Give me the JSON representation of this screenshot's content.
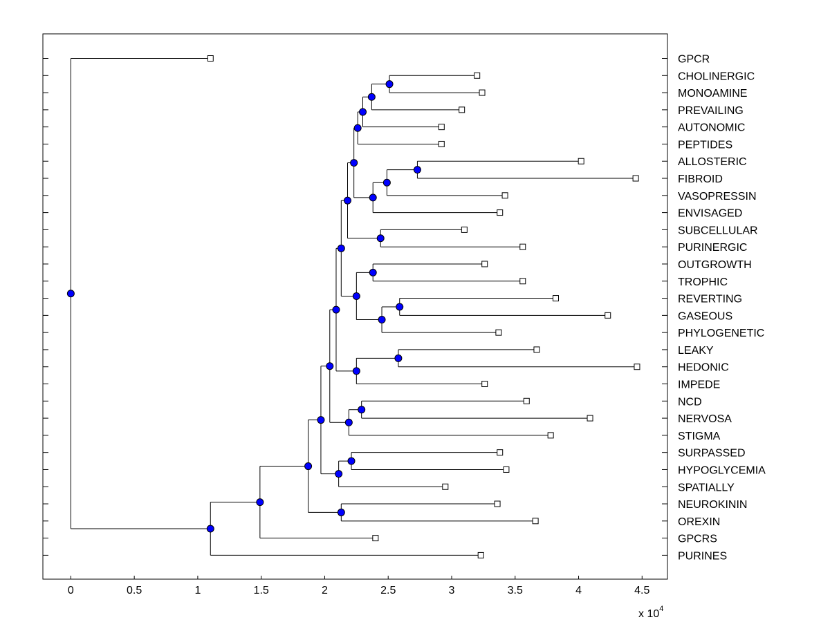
{
  "chart_data": {
    "type": "dendrogram",
    "orientation": "horizontal",
    "xlim": [
      -0.22,
      4.7
    ],
    "xticks": [
      0,
      0.5,
      1,
      1.5,
      2,
      2.5,
      3,
      3.5,
      4,
      4.5
    ],
    "xtick_labels": [
      "0",
      "0.5",
      "1",
      "1.5",
      "2",
      "2.5",
      "3",
      "3.5",
      "4",
      "4.5"
    ],
    "x_exponent_label": "x 10",
    "x_exponent_power": "4",
    "node_color": "#0000ff",
    "leaf_marker_color": "#ffffff",
    "leaves": [
      {
        "label": "GPCR",
        "value": 1.1
      },
      {
        "label": "CHOLINERGIC",
        "value": 3.2
      },
      {
        "label": "MONOAMINE",
        "value": 3.24
      },
      {
        "label": "PREVAILING",
        "value": 3.08
      },
      {
        "label": "AUTONOMIC",
        "value": 2.92
      },
      {
        "label": "PEPTIDES",
        "value": 2.92
      },
      {
        "label": "ALLOSTERIC",
        "value": 4.02
      },
      {
        "label": "FIBROID",
        "value": 4.45
      },
      {
        "label": "VASOPRESSIN",
        "value": 3.42
      },
      {
        "label": "ENVISAGED",
        "value": 3.38
      },
      {
        "label": "SUBCELLULAR",
        "value": 3.1
      },
      {
        "label": "PURINERGIC",
        "value": 3.56
      },
      {
        "label": "OUTGROWTH",
        "value": 3.26
      },
      {
        "label": "TROPHIC",
        "value": 3.56
      },
      {
        "label": "REVERTING",
        "value": 3.82
      },
      {
        "label": "GASEOUS",
        "value": 4.23
      },
      {
        "label": "PHYLOGENETIC",
        "value": 3.37
      },
      {
        "label": "LEAKY",
        "value": 3.67
      },
      {
        "label": "HEDONIC",
        "value": 4.46
      },
      {
        "label": "IMPEDE",
        "value": 3.26
      },
      {
        "label": "NCD",
        "value": 3.59
      },
      {
        "label": "NERVOSA",
        "value": 4.09
      },
      {
        "label": "STIGMA",
        "value": 3.78
      },
      {
        "label": "SURPASSED",
        "value": 3.38
      },
      {
        "label": "HYPOGLYCEMIA",
        "value": 3.43
      },
      {
        "label": "SPATIALLY",
        "value": 2.95
      },
      {
        "label": "NEUROKININ",
        "value": 3.36
      },
      {
        "label": "OREXIN",
        "value": 3.66
      },
      {
        "label": "GPCRS",
        "value": 2.4
      },
      {
        "label": "PURINES",
        "value": 3.23
      }
    ],
    "tree": {
      "x": 0,
      "children": [
        {
          "leaf": 0
        },
        {
          "x": 1.1,
          "children": [
            {
              "x": 1.49,
              "children": [
                {
                  "x": 1.87,
                  "children": [
                    {
                      "x": 1.97,
                      "children": [
                        {
                          "x": 2.04,
                          "children": [
                            {
                              "x": 2.09,
                              "children": [
                                {
                                  "x": 2.13,
                                  "children": [
                                    {
                                      "x": 2.18,
                                      "children": [
                                        {
                                          "x": 2.23,
                                          "children": [
                                            {
                                              "x": 2.26,
                                              "children": [
                                                {
                                                  "x": 2.3,
                                                  "children": [
                                                    {
                                                      "x": 2.37,
                                                      "children": [
                                                        {
                                                          "x": 2.51,
                                                          "children": [
                                                            {
                                                              "leaf": 1
                                                            },
                                                            {
                                                              "leaf": 2
                                                            }
                                                          ]
                                                        },
                                                        {
                                                          "leaf": 3
                                                        }
                                                      ]
                                                    },
                                                    {
                                                      "leaf": 4
                                                    }
                                                  ]
                                                },
                                                {
                                                  "leaf": 5
                                                }
                                              ]
                                            },
                                            {
                                              "x": 2.38,
                                              "children": [
                                                {
                                                  "x": 2.49,
                                                  "children": [
                                                    {
                                                      "x": 2.73,
                                                      "children": [
                                                        {
                                                          "leaf": 6
                                                        },
                                                        {
                                                          "leaf": 7
                                                        }
                                                      ]
                                                    },
                                                    {
                                                      "leaf": 8
                                                    }
                                                  ]
                                                },
                                                {
                                                  "leaf": 9
                                                }
                                              ]
                                            }
                                          ]
                                        },
                                        {
                                          "x": 2.44,
                                          "children": [
                                            {
                                              "leaf": 10
                                            },
                                            {
                                              "leaf": 11
                                            }
                                          ]
                                        }
                                      ]
                                    },
                                    {
                                      "x": 2.25,
                                      "children": [
                                        {
                                          "x": 2.38,
                                          "children": [
                                            {
                                              "leaf": 12
                                            },
                                            {
                                              "leaf": 13
                                            }
                                          ]
                                        },
                                        {
                                          "x": 2.45,
                                          "children": [
                                            {
                                              "x": 2.59,
                                              "children": [
                                                {
                                                  "leaf": 14
                                                },
                                                {
                                                  "leaf": 15
                                                }
                                              ]
                                            },
                                            {
                                              "leaf": 16
                                            }
                                          ]
                                        }
                                      ]
                                    }
                                  ]
                                },
                                {
                                  "x": 2.25,
                                  "children": [
                                    {
                                      "x": 2.58,
                                      "children": [
                                        {
                                          "leaf": 17
                                        },
                                        {
                                          "leaf": 18
                                        }
                                      ]
                                    },
                                    {
                                      "leaf": 19
                                    }
                                  ]
                                }
                              ]
                            },
                            {
                              "x": 2.19,
                              "children": [
                                {
                                  "x": 2.29,
                                  "children": [
                                    {
                                      "leaf": 20
                                    },
                                    {
                                      "leaf": 21
                                    }
                                  ]
                                },
                                {
                                  "leaf": 22
                                }
                              ]
                            }
                          ]
                        },
                        {
                          "x": 2.11,
                          "children": [
                            {
                              "x": 2.21,
                              "children": [
                                {
                                  "leaf": 23
                                },
                                {
                                  "leaf": 24
                                }
                              ]
                            },
                            {
                              "leaf": 25
                            }
                          ]
                        }
                      ]
                    },
                    {
                      "x": 2.13,
                      "children": [
                        {
                          "leaf": 26
                        },
                        {
                          "leaf": 27
                        }
                      ]
                    }
                  ]
                },
                {
                  "leaf": 28
                }
              ]
            },
            {
              "leaf": 29
            }
          ]
        }
      ]
    }
  }
}
